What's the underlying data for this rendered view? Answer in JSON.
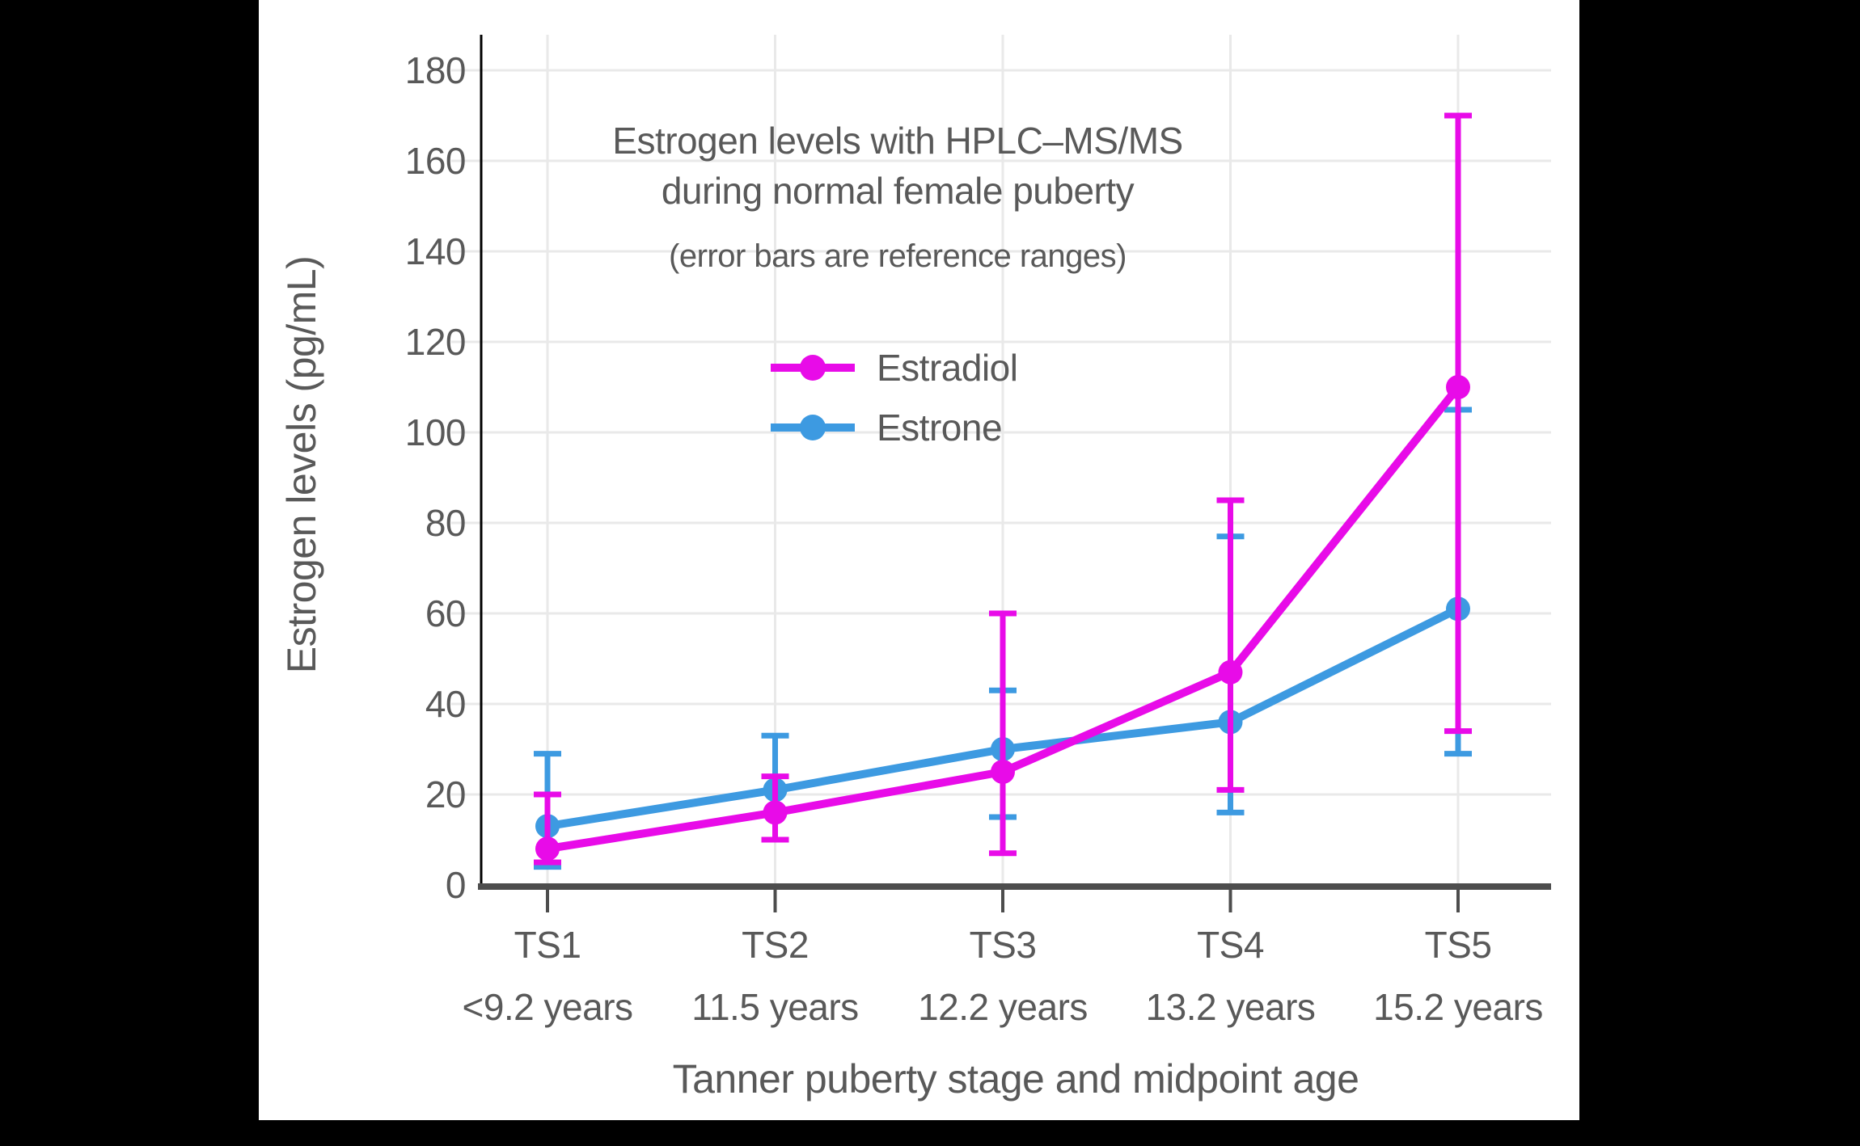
{
  "frame": {
    "background_color": "#000000",
    "canvas_color": "#ffffff"
  },
  "chart_data": {
    "type": "line",
    "title_line1": "Estrogen levels with HPLC–MS/MS",
    "title_line2": "during normal female puberty",
    "subtitle": "(error bars are reference ranges)",
    "xlabel": "Tanner puberty stage and midpoint age",
    "ylabel": "Estrogen levels (pg/mL)",
    "ylim": [
      0,
      180
    ],
    "yticks": [
      0,
      20,
      40,
      60,
      80,
      100,
      120,
      140,
      160,
      180
    ],
    "grid": true,
    "legend_position": "upper-left-inside-plot",
    "categories": [
      "TS1",
      "TS2",
      "TS3",
      "TS4",
      "TS5"
    ],
    "category_sublabels": [
      "<9.2 years",
      "11.5 years",
      "12.2 years",
      "13.2 years",
      "15.2 years"
    ],
    "series": [
      {
        "name": "Estrone",
        "color": "#3D9AE1",
        "values": [
          13,
          21,
          30,
          36,
          61
        ],
        "error_low": [
          4,
          10,
          15,
          16,
          29
        ],
        "error_high": [
          29,
          33,
          43,
          77,
          105
        ]
      },
      {
        "name": "Estradiol",
        "color": "#E80BE8",
        "values": [
          8,
          16,
          25,
          47,
          110
        ],
        "error_low": [
          5,
          10,
          7,
          21,
          34
        ],
        "error_high": [
          20,
          24,
          60,
          85,
          170
        ]
      }
    ],
    "styles": {
      "text_color": "#595959",
      "gridline_color": "#E9E9E9",
      "baseline_color": "#4D4D4D",
      "spine_color": "#000000"
    }
  },
  "legend": {
    "items": [
      {
        "label": "Estradiol",
        "color": "#E80BE8"
      },
      {
        "label": "Estrone",
        "color": "#3D9AE1"
      }
    ]
  }
}
